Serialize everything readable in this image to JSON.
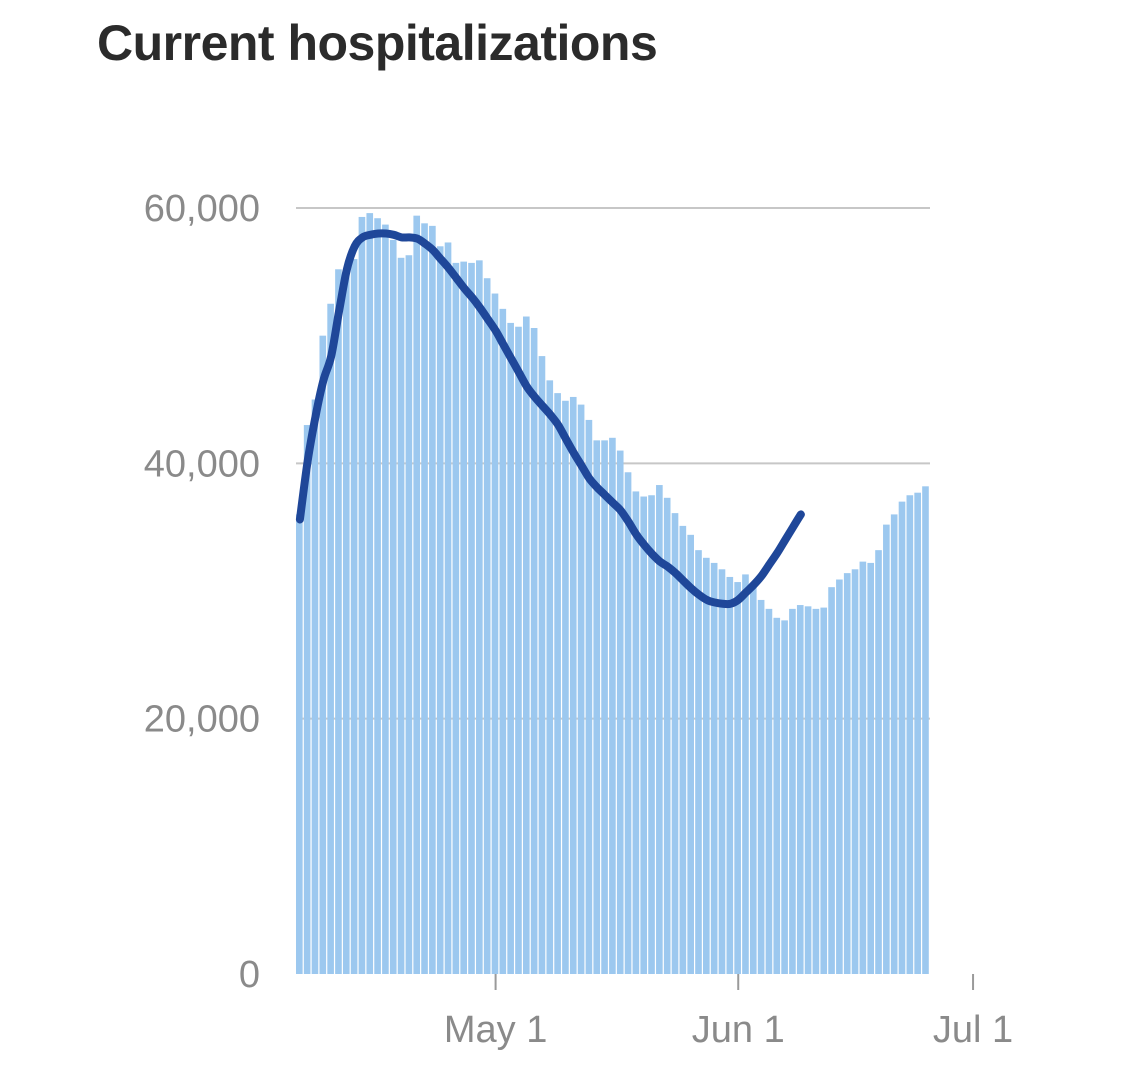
{
  "chart_data": {
    "type": "bar",
    "title": "Current hospitalizations",
    "xlabel": "",
    "ylabel": "",
    "ylim": [
      0,
      60000
    ],
    "grid": true,
    "y_ticks": [
      {
        "value": 0,
        "label": "0"
      },
      {
        "value": 20000,
        "label": "20,000"
      },
      {
        "value": 40000,
        "label": "40,000"
      },
      {
        "value": 60000,
        "label": "60,000"
      }
    ],
    "x_ticks": [
      {
        "date": "2020-05-01",
        "label": "May 1"
      },
      {
        "date": "2020-06-01",
        "label": "Jun 1"
      },
      {
        "date": "2020-07-01",
        "label": "Jul 1"
      }
    ],
    "colors": {
      "bars": "#9cc8ef",
      "average_line": "#1f4799",
      "grid": "#c7c7c7",
      "ticks": "#8a8a8a"
    },
    "series": [
      {
        "type": "bar",
        "start_date": "2020-04-06",
        "values": [
          36000,
          43000,
          45000,
          50000,
          52500,
          55200,
          55000,
          56000,
          59300,
          59600,
          59200,
          58700,
          57500,
          56100,
          56300,
          59400,
          58800,
          58600,
          57000,
          57300,
          55700,
          55800,
          55700,
          55900,
          54500,
          53300,
          52100,
          51000,
          50700,
          51500,
          50600,
          48400,
          46500,
          45500,
          44900,
          45200,
          44600,
          43400,
          41800,
          41800,
          42000,
          41000,
          39300,
          37800,
          37400,
          37500,
          38300,
          37300,
          36100,
          35100,
          34400,
          33200,
          32600,
          32200,
          31700,
          31100,
          30700,
          31300,
          30600,
          29300,
          28600,
          27900,
          27700,
          28600,
          28900,
          28800,
          28600,
          28700,
          30300,
          30900,
          31400,
          31700,
          32300,
          32200,
          33200,
          35200,
          36000,
          37000,
          37500,
          37700,
          38200
        ]
      },
      {
        "type": "line",
        "start_date": "2020-04-06",
        "values": [
          35600,
          40200,
          43700,
          46500,
          48400,
          51900,
          55200,
          57000,
          57700,
          57900,
          58000,
          58000,
          57900,
          57700,
          57700,
          57600,
          57200,
          56700,
          56000,
          55300,
          54500,
          53700,
          53000,
          52200,
          51300,
          50400,
          49300,
          48200,
          47100,
          46000,
          45200,
          44500,
          43800,
          43000,
          41900,
          40800,
          39800,
          38800,
          38100,
          37500,
          36900,
          36300,
          35400,
          34400,
          33600,
          32900,
          32300,
          31900,
          31400,
          30800,
          30200,
          29700,
          29300,
          29100,
          29000,
          29000,
          29300,
          29900,
          30500,
          31200,
          32100,
          33000,
          34000,
          35000,
          36000
        ]
      }
    ]
  }
}
